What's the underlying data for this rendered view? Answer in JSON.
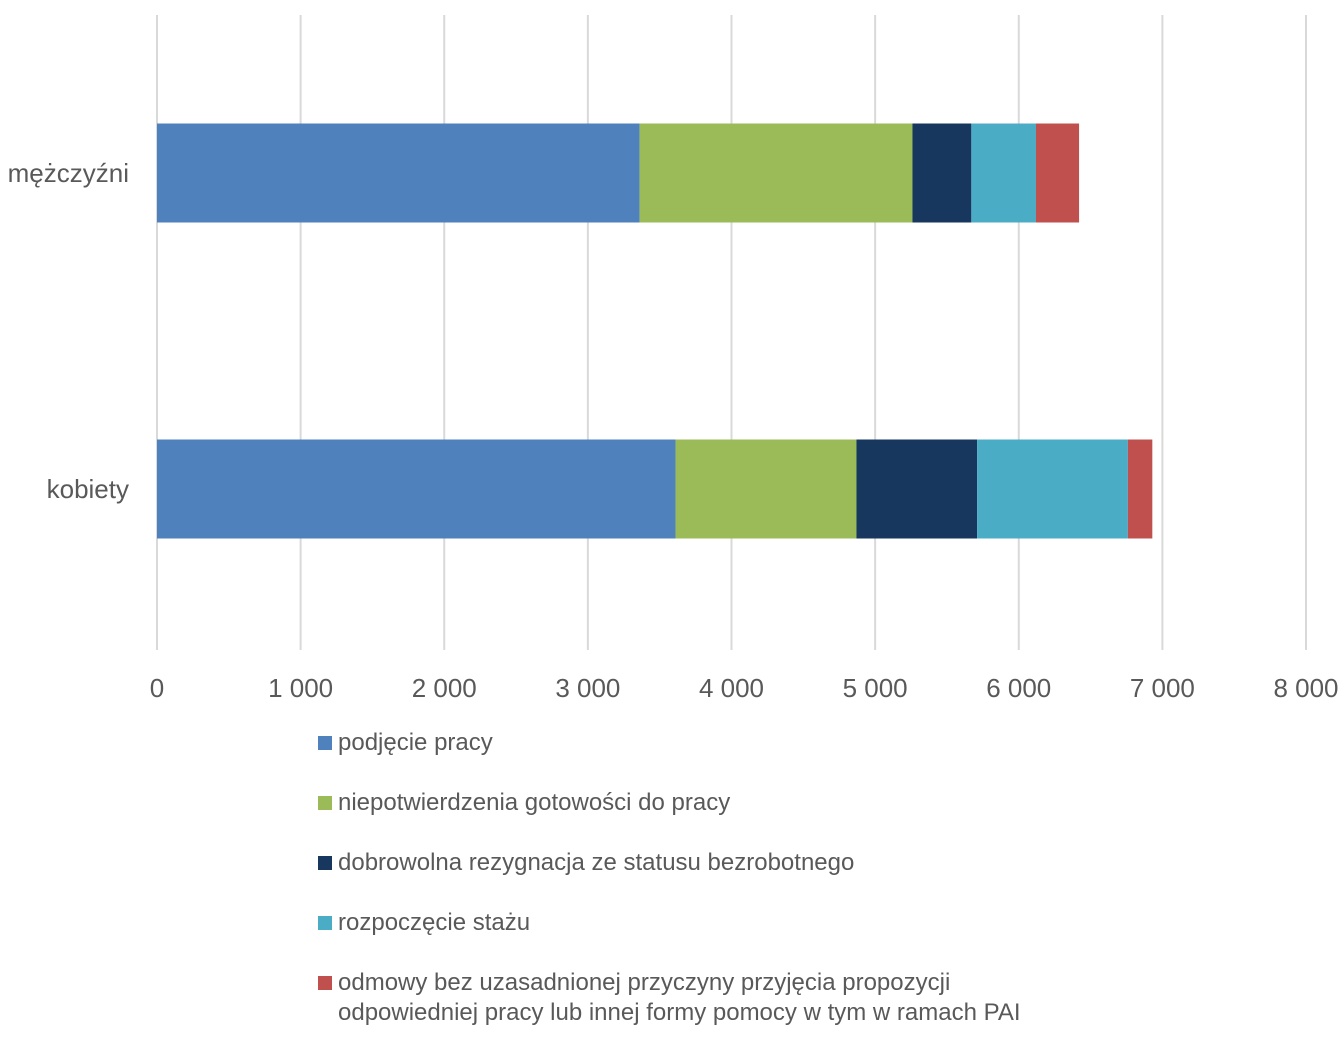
{
  "chart_data": {
    "type": "bar",
    "orientation": "horizontal",
    "stacked": true,
    "categories": [
      "mężczyźni",
      "kobiety"
    ],
    "series": [
      {
        "name": "podjęcie pracy",
        "color": "#4f81bd",
        "values": [
          3360,
          3610
        ]
      },
      {
        "name": "niepotwierdzenia gotowości do pracy",
        "color": "#9bbb59",
        "values": [
          1900,
          1260
        ]
      },
      {
        "name": "dobrowolna rezygnacja ze statusu bezrobotnego",
        "color": "#17375e",
        "values": [
          410,
          840
        ]
      },
      {
        "name": "rozpoczęcie stażu",
        "color": "#4bacc6",
        "values": [
          450,
          1050
        ]
      },
      {
        "name": "odmowy bez uzasadnionej przyczyny przyjęcia propozycji odpowiedniej pracy lub innej formy pomocy w tym w ramach PAI",
        "color": "#c0504d",
        "values": [
          300,
          170
        ]
      }
    ],
    "xlim": [
      0,
      8000
    ],
    "xticks": [
      0,
      1000,
      2000,
      3000,
      4000,
      5000,
      6000,
      7000,
      8000
    ],
    "xtick_labels": [
      "0",
      "1 000",
      "2 000",
      "3 000",
      "4 000",
      "5 000",
      "6 000",
      "7 000",
      "8 000"
    ],
    "grid": "vertical",
    "legend_position": "bottom",
    "title": "",
    "xlabel": "",
    "ylabel": ""
  }
}
